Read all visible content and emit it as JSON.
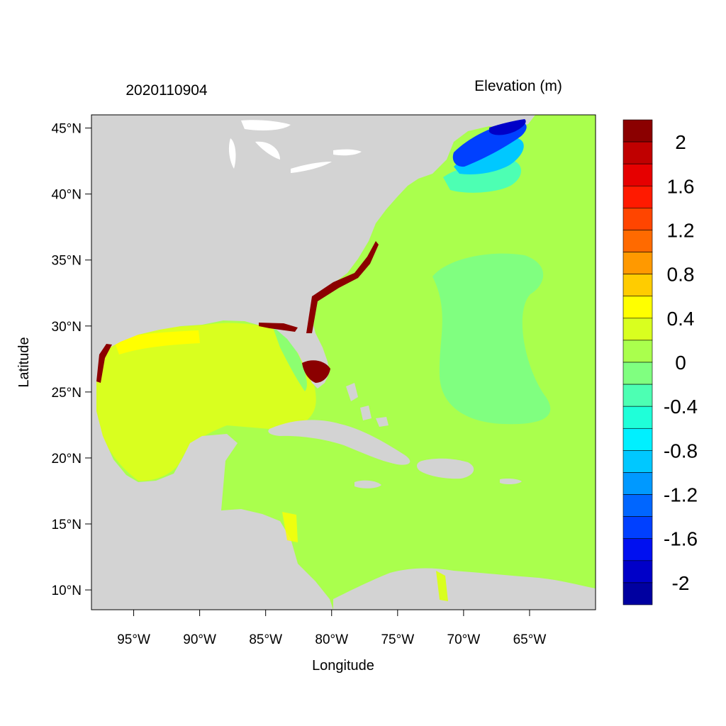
{
  "figure": {
    "date_label": "2020110904",
    "variable_label": "Elevation (m)",
    "xlabel": "Longitude",
    "ylabel": "Latitude",
    "lon_range": [
      -98.2,
      -60.0
    ],
    "lat_range": [
      8.5,
      46.0
    ],
    "lon_ticks": [
      {
        "value": -95,
        "label": "95°W"
      },
      {
        "value": -90,
        "label": "90°W"
      },
      {
        "value": -85,
        "label": "85°W"
      },
      {
        "value": -80,
        "label": "80°W"
      },
      {
        "value": -75,
        "label": "75°W"
      },
      {
        "value": -70,
        "label": "70°W"
      },
      {
        "value": -65,
        "label": "65°W"
      }
    ],
    "lat_ticks": [
      {
        "value": 45,
        "label": "45°N"
      },
      {
        "value": 40,
        "label": "40°N"
      },
      {
        "value": 35,
        "label": "35°N"
      },
      {
        "value": 30,
        "label": "30°N"
      },
      {
        "value": 25,
        "label": "25°N"
      },
      {
        "value": 20,
        "label": "20°N"
      },
      {
        "value": 15,
        "label": "15°N"
      },
      {
        "value": 10,
        "label": "10°N"
      }
    ]
  },
  "colorbar": {
    "colors_top_to_bottom": [
      "#8b0000",
      "#c00000",
      "#e60000",
      "#ff1a00",
      "#ff4500",
      "#ff6a00",
      "#ff9900",
      "#ffcc00",
      "#ffff00",
      "#d9ff1f",
      "#aaff4d",
      "#80ff80",
      "#4dffb3",
      "#1fffd9",
      "#00f0ff",
      "#00c8ff",
      "#0099ff",
      "#0066ff",
      "#0040ff",
      "#0010f0",
      "#0000c8",
      "#0000a0"
    ],
    "labels": [
      {
        "text": "2",
        "slot": 1
      },
      {
        "text": "1.6",
        "slot": 3
      },
      {
        "text": "1.2",
        "slot": 5
      },
      {
        "text": "0.8",
        "slot": 7
      },
      {
        "text": "0.4",
        "slot": 9
      },
      {
        "text": "0",
        "slot": 11
      },
      {
        "text": "-0.4",
        "slot": 13
      },
      {
        "text": "-0.8",
        "slot": 15
      },
      {
        "text": "-1.2",
        "slot": 17
      },
      {
        "text": "-1.6",
        "slot": 19
      },
      {
        "text": "-2",
        "slot": 21
      }
    ]
  },
  "map_colors": {
    "land": "#d3d3d3",
    "ocean_base": "#aaff4d",
    "gulf": "#d9ff1f",
    "gulf_coast": "#ffff00",
    "anomaly_low": "#80ff80",
    "surge_high": "#8b0000",
    "nova_scotia_low": "#0040ff",
    "lake": "#ffffff"
  }
}
